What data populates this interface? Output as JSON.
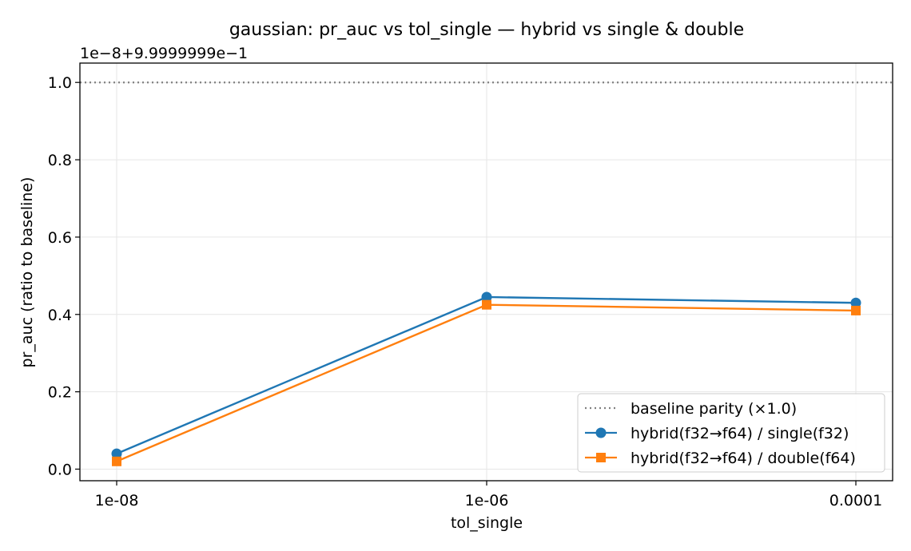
{
  "chart_data": {
    "type": "line",
    "title": "gaussian: pr_auc vs tol_single — hybrid vs single & double",
    "xlabel": "tol_single",
    "ylabel": "pr_auc (ratio to baseline)",
    "y_offset_label": "1e−8+9.9999999e−1",
    "categories": [
      "1e-08",
      "1e-06",
      "0.0001"
    ],
    "ylim": [
      -0.03,
      1.05
    ],
    "yticks": [
      0.0,
      0.2,
      0.4,
      0.6,
      0.8,
      1.0
    ],
    "ytick_labels": [
      "0.0",
      "0.2",
      "0.4",
      "0.6",
      "0.8",
      "1.0"
    ],
    "grid": true,
    "legend_position": "lower-right",
    "baseline": {
      "name": "baseline parity (×1.0)",
      "value": 1.0,
      "color": "#808080"
    },
    "series": [
      {
        "name": "hybrid(f32→f64) / single(f32)",
        "values": [
          0.04,
          0.445,
          0.43
        ],
        "color": "#1f77b4",
        "marker": "circle"
      },
      {
        "name": "hybrid(f32→f64) / double(f64)",
        "values": [
          0.02,
          0.425,
          0.41
        ],
        "color": "#ff7f0e",
        "marker": "square"
      }
    ]
  }
}
